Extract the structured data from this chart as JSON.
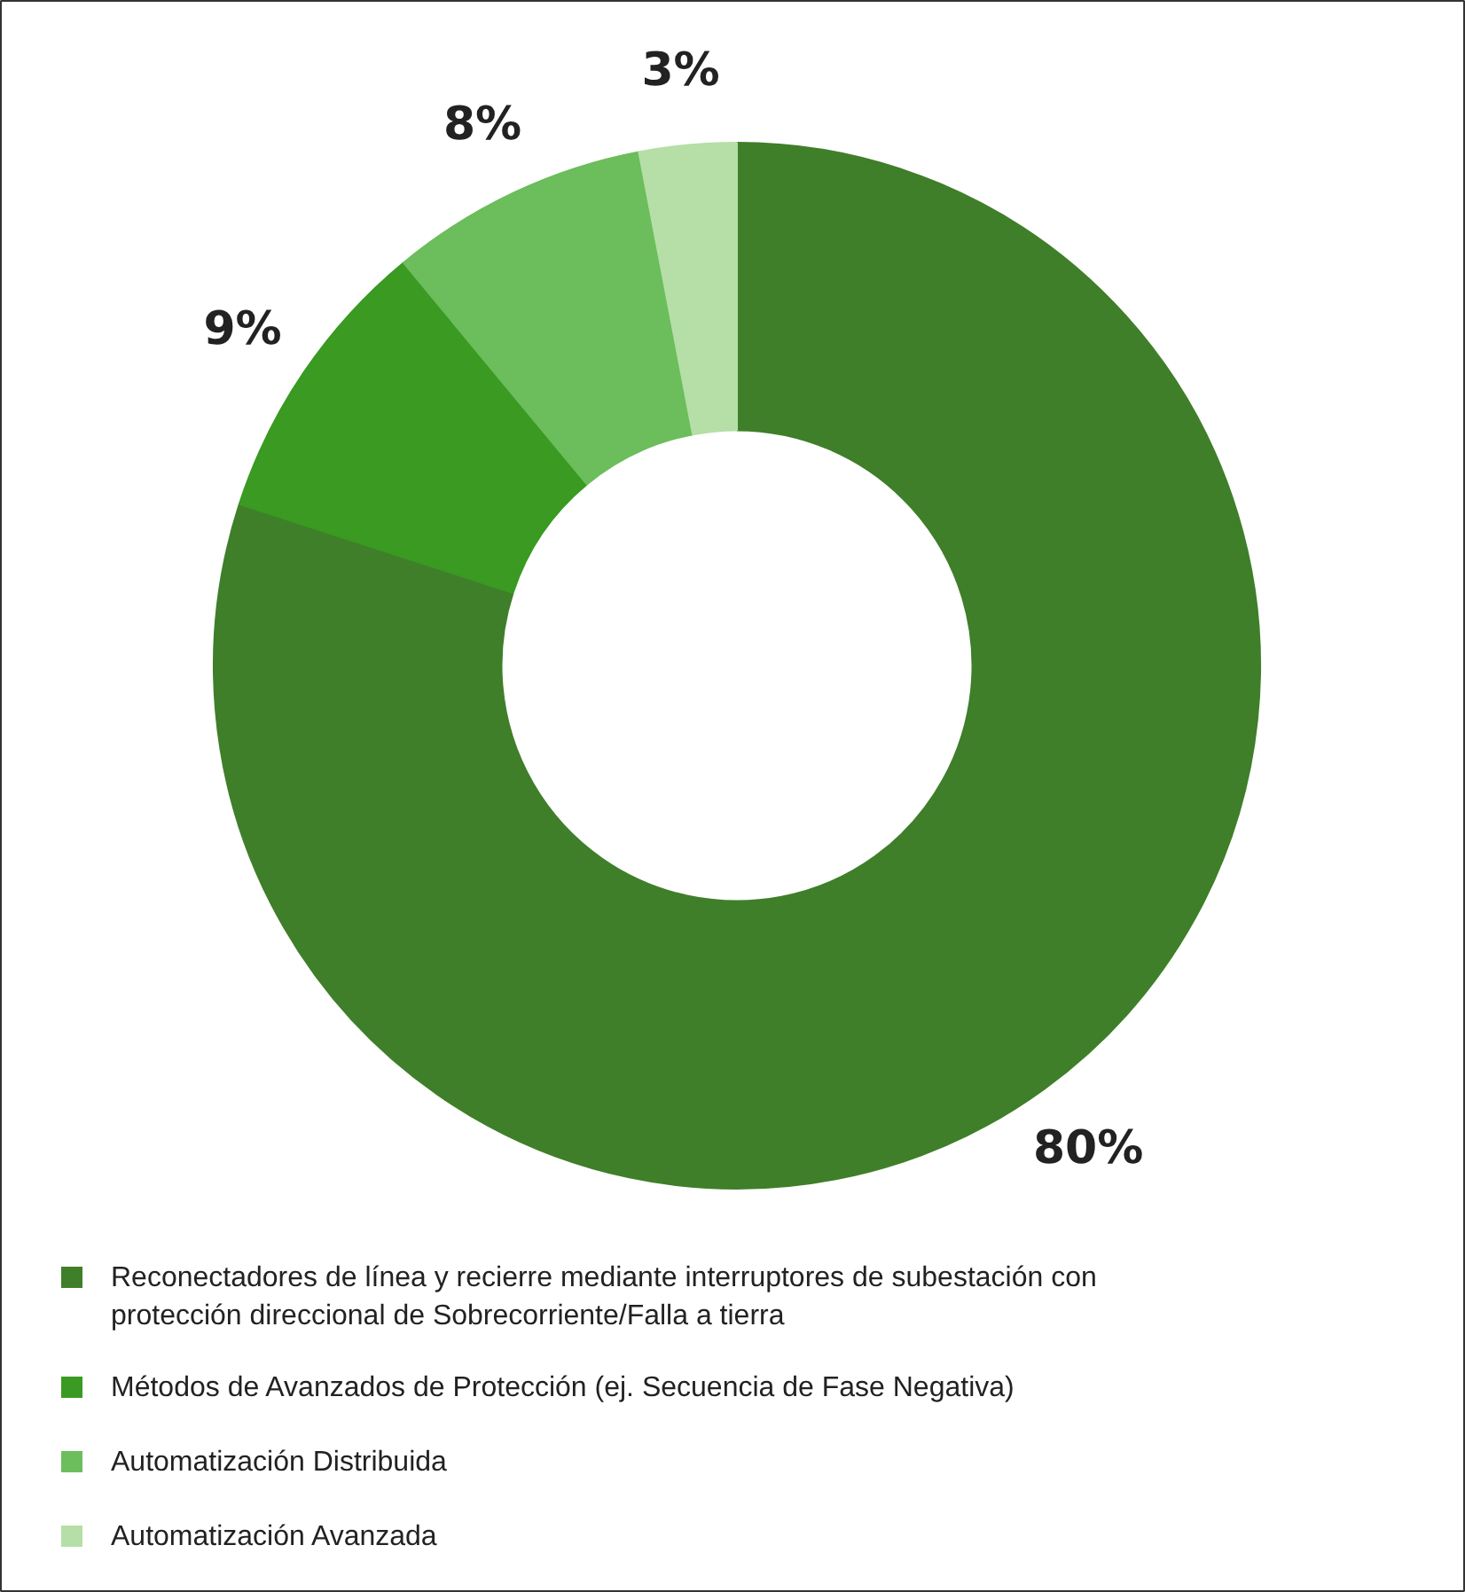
{
  "chart_data": {
    "type": "donut",
    "categories": [
      "Reconectadores de línea y recierre mediante interruptores de subestación con protección direccional de Sobrecorriente/Falla a tierra",
      "Métodos de Avanzados de Protección (ej. Secuencia de Fase Negativa)",
      "Automatización Distribuida",
      "Automatización Avanzada"
    ],
    "values": [
      80,
      9,
      8,
      3
    ],
    "colors": [
      "#3f7f2a",
      "#3a9a22",
      "#6cbd5c",
      "#b5dfa6"
    ],
    "value_labels": [
      "80%",
      "9%",
      "8%",
      "3%"
    ],
    "legend": "bottom"
  }
}
